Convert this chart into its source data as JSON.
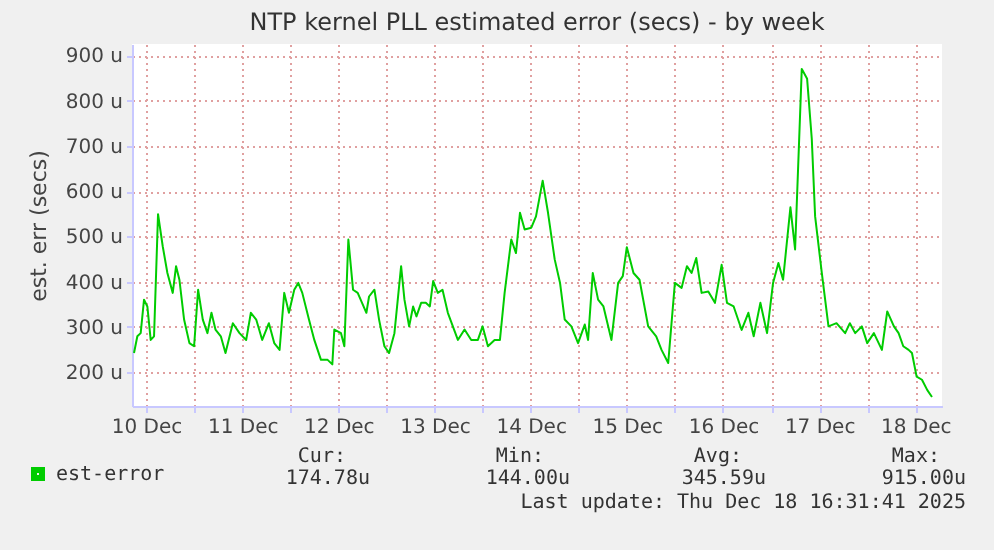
{
  "chart_data": {
    "type": "line",
    "title": "NTP kernel PLL estimated error (secs) - by week",
    "ylabel": "est. err (secs)",
    "xlim": [
      "2025-12-10T08:30",
      "2025-12-18T18:40"
    ],
    "xticks": [
      {
        "value": "2025-12-10T12:00",
        "label": "10 Dec"
      },
      {
        "value": "2025-12-11T00:00",
        "label": null
      },
      {
        "value": "2025-12-11T12:00",
        "label": "11 Dec"
      },
      {
        "value": "2025-12-12T00:00",
        "label": null
      },
      {
        "value": "2025-12-12T12:00",
        "label": "12 Dec"
      },
      {
        "value": "2025-12-13T00:00",
        "label": null
      },
      {
        "value": "2025-12-13T12:00",
        "label": "13 Dec"
      },
      {
        "value": "2025-12-14T00:00",
        "label": null
      },
      {
        "value": "2025-12-14T12:00",
        "label": "14 Dec"
      },
      {
        "value": "2025-12-15T00:00",
        "label": null
      },
      {
        "value": "2025-12-15T12:00",
        "label": "15 Dec"
      },
      {
        "value": "2025-12-16T00:00",
        "label": null
      },
      {
        "value": "2025-12-16T12:00",
        "label": "16 Dec"
      },
      {
        "value": "2025-12-17T00:00",
        "label": null
      },
      {
        "value": "2025-12-17T12:00",
        "label": "17 Dec"
      },
      {
        "value": "2025-12-18T00:00",
        "label": null
      },
      {
        "value": "2025-12-18T12:00",
        "label": "18 Dec"
      }
    ],
    "ylim": [
      125,
      925
    ],
    "yticks": [
      {
        "value": 200,
        "label": "200 u"
      },
      {
        "value": 300,
        "label": "300 u"
      },
      {
        "value": 400,
        "label": "400 u"
      },
      {
        "value": 500,
        "label": "500 u"
      },
      {
        "value": 600,
        "label": "600 u"
      },
      {
        "value": 700,
        "label": "700 u"
      },
      {
        "value": 800,
        "label": "800 u"
      },
      {
        "value": 900,
        "label": "900 u"
      }
    ],
    "grid": true,
    "legend": "bottom",
    "annotations": [
      "Cur:",
      "174.78u",
      "Min:",
      "144.00u",
      "Avg:",
      "345.59u",
      "Max:",
      "915.00u",
      "Last update: Thu Dec 18 16:31:41 2025"
    ],
    "x": [
      "2025-12-10T09:00",
      "2025-12-10T09:50",
      "2025-12-10T10:40",
      "2025-12-10T11:30",
      "2025-12-10T12:20",
      "2025-12-10T13:10",
      "2025-12-10T14:00",
      "2025-12-10T15:00",
      "2025-12-10T16:10",
      "2025-12-10T17:20",
      "2025-12-10T18:40",
      "2025-12-10T19:30",
      "2025-12-10T20:20",
      "2025-12-10T21:30",
      "2025-12-10T22:50",
      "2025-12-11T00:00",
      "2025-12-11T01:00",
      "2025-12-11T02:10",
      "2025-12-11T03:20",
      "2025-12-11T04:20",
      "2025-12-11T05:20",
      "2025-12-11T06:40",
      "2025-12-11T07:50",
      "2025-12-11T09:40",
      "2025-12-11T11:20",
      "2025-12-11T13:00",
      "2025-12-11T14:10",
      "2025-12-11T15:30",
      "2025-12-11T17:00",
      "2025-12-11T18:40",
      "2025-12-11T20:00",
      "2025-12-11T21:20",
      "2025-12-11T22:30",
      "2025-12-11T23:40",
      "2025-12-12T01:00",
      "2025-12-12T02:00",
      "2025-12-12T03:00",
      "2025-12-12T04:40",
      "2025-12-12T06:00",
      "2025-12-12T07:40",
      "2025-12-12T09:20",
      "2025-12-12T10:30",
      "2025-12-12T11:00",
      "2025-12-12T12:40",
      "2025-12-12T13:30",
      "2025-12-12T14:30",
      "2025-12-12T15:40",
      "2025-12-12T16:50",
      "2025-12-12T19:00",
      "2025-12-12T19:40",
      "2025-12-12T21:00",
      "2025-12-12T22:10",
      "2025-12-12T23:30",
      "2025-12-13T00:40",
      "2025-12-13T02:00",
      "2025-12-13T03:40",
      "2025-12-13T04:30",
      "2025-12-13T05:40",
      "2025-12-13T06:40",
      "2025-12-13T07:30",
      "2025-12-13T08:40",
      "2025-12-13T09:50",
      "2025-12-13T10:50",
      "2025-12-13T11:40",
      "2025-12-13T12:50",
      "2025-12-13T14:00",
      "2025-12-13T15:20",
      "2025-12-13T17:50",
      "2025-12-13T19:30",
      "2025-12-13T21:10",
      "2025-12-13T22:50",
      "2025-12-14T00:00",
      "2025-12-14T01:20",
      "2025-12-14T03:00",
      "2025-12-14T04:20",
      "2025-12-14T05:30",
      "2025-12-14T07:10",
      "2025-12-14T08:20",
      "2025-12-14T09:20",
      "2025-12-14T10:30",
      "2025-12-14T12:10",
      "2025-12-14T13:20",
      "2025-12-14T15:00",
      "2025-12-14T16:20",
      "2025-12-14T18:00",
      "2025-12-14T19:20",
      "2025-12-14T20:30",
      "2025-12-14T22:10",
      "2025-12-14T23:50",
      "2025-12-15T01:30",
      "2025-12-15T02:20",
      "2025-12-15T03:30",
      "2025-12-15T04:50",
      "2025-12-15T06:10",
      "2025-12-15T08:10",
      "2025-12-15T09:50",
      "2025-12-15T11:00",
      "2025-12-15T12:00",
      "2025-12-15T13:40",
      "2025-12-15T15:10",
      "2025-12-15T17:20",
      "2025-12-15T19:20",
      "2025-12-15T20:40",
      "2025-12-15T22:20",
      "2025-12-16T00:00",
      "2025-12-16T01:40",
      "2025-12-16T03:00",
      "2025-12-16T04:10",
      "2025-12-16T05:20",
      "2025-12-16T06:40",
      "2025-12-16T08:20",
      "2025-12-16T10:00",
      "2025-12-16T11:40",
      "2025-12-16T13:00",
      "2025-12-16T14:40",
      "2025-12-16T16:40",
      "2025-12-16T18:20",
      "2025-12-16T19:40",
      "2025-12-16T21:20",
      "2025-12-16T23:00",
      "2025-12-17T00:30",
      "2025-12-17T01:50",
      "2025-12-17T03:00",
      "2025-12-17T04:50",
      "2025-12-17T06:00",
      "2025-12-17T07:40",
      "2025-12-17T09:00",
      "2025-12-17T10:10",
      "2025-12-17T11:00",
      "2025-12-17T12:40",
      "2025-12-17T14:20",
      "2025-12-17T16:20",
      "2025-12-17T18:30",
      "2025-12-17T19:40",
      "2025-12-17T21:00",
      "2025-12-17T22:40",
      "2025-12-18T00:00",
      "2025-12-18T01:40",
      "2025-12-18T03:40",
      "2025-12-18T05:00",
      "2025-12-18T06:40",
      "2025-12-18T07:50",
      "2025-12-18T09:00",
      "2025-12-18T10:20",
      "2025-12-18T11:10",
      "2025-12-18T12:20",
      "2025-12-18T13:40",
      "2025-12-18T15:00",
      "2025-12-18T16:10"
    ],
    "series": [
      {
        "name": "est-error",
        "color": "#00cc00",
        "values": [
          242,
          279,
          286,
          360,
          345,
          271,
          279,
          549,
          478,
          419,
          375,
          434,
          404,
          316,
          264,
          257,
          382,
          316,
          286,
          331,
          294,
          279,
          242,
          308,
          286,
          271,
          331,
          316,
          271,
          308,
          264,
          249,
          375,
          331,
          382,
          397,
          375,
          316,
          271,
          227,
          227,
          217,
          294,
          286,
          257,
          493,
          382,
          375,
          331,
          367,
          382,
          316,
          257,
          242,
          286,
          434,
          360,
          301,
          345,
          323,
          353,
          353,
          345,
          401,
          375,
          382,
          331,
          271,
          294,
          271,
          271,
          301,
          257,
          271,
          271,
          375,
          493,
          463,
          552,
          515,
          519,
          544,
          623,
          552,
          449,
          397,
          316,
          301,
          264,
          305,
          271,
          419,
          360,
          345,
          271,
          397,
          412,
          476,
          419,
          404,
          301,
          279,
          249,
          220,
          397,
          386,
          434,
          419,
          452,
          375,
          378,
          353,
          437,
          353,
          345,
          293,
          331,
          279,
          353,
          286,
          397,
          441,
          404,
          564,
          471,
          870,
          848,
          715,
          544,
          419,
          301,
          308,
          286,
          308,
          286,
          301,
          264,
          286,
          249,
          334,
          301,
          286,
          257,
          249,
          242,
          190,
          183,
          160,
          145
        ]
      }
    ]
  }
}
